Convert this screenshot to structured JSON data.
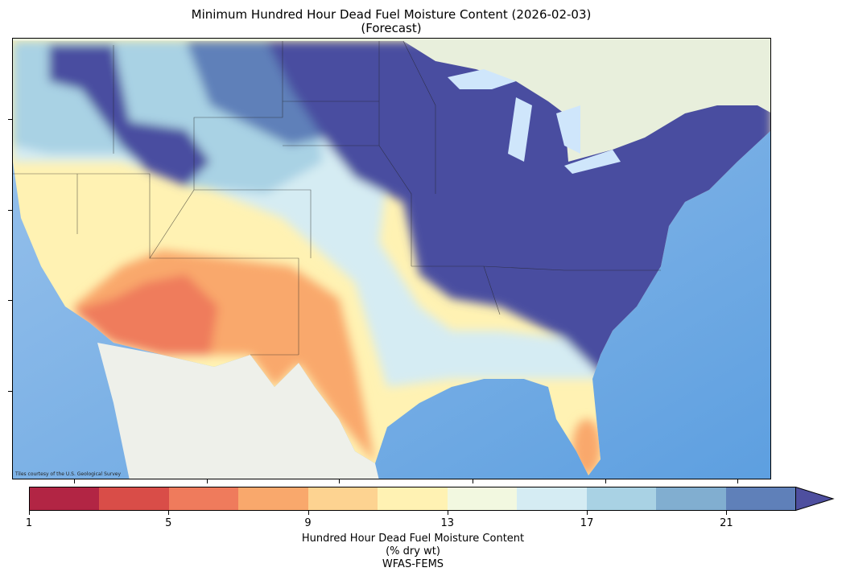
{
  "title": {
    "line1": "Minimum Hundred Hour Dead Fuel Moisture Content (2026-02-03)",
    "line2": "(Forecast)"
  },
  "map": {
    "attribution": "Tiles courtesy of the U.S. Geological Survey"
  },
  "colorbar": {
    "label_line1": "Hundred Hour Dead Fuel Moisture Content",
    "label_line2": "(% dry wt)",
    "label_line3": "WFAS-FEMS",
    "min": 1,
    "max": 23,
    "extend": "max",
    "ticks": [
      "1",
      "5",
      "9",
      "13",
      "17",
      "21"
    ],
    "colors": [
      "#b22544",
      "#d94d48",
      "#ef7b5c",
      "#f9a86c",
      "#fdd391",
      "#fff2b3",
      "#f2f8e0",
      "#d5ecf3",
      "#a9d2e4",
      "#81aed0",
      "#5f80b9"
    ],
    "extend_color": "#4e4f9f"
  }
}
